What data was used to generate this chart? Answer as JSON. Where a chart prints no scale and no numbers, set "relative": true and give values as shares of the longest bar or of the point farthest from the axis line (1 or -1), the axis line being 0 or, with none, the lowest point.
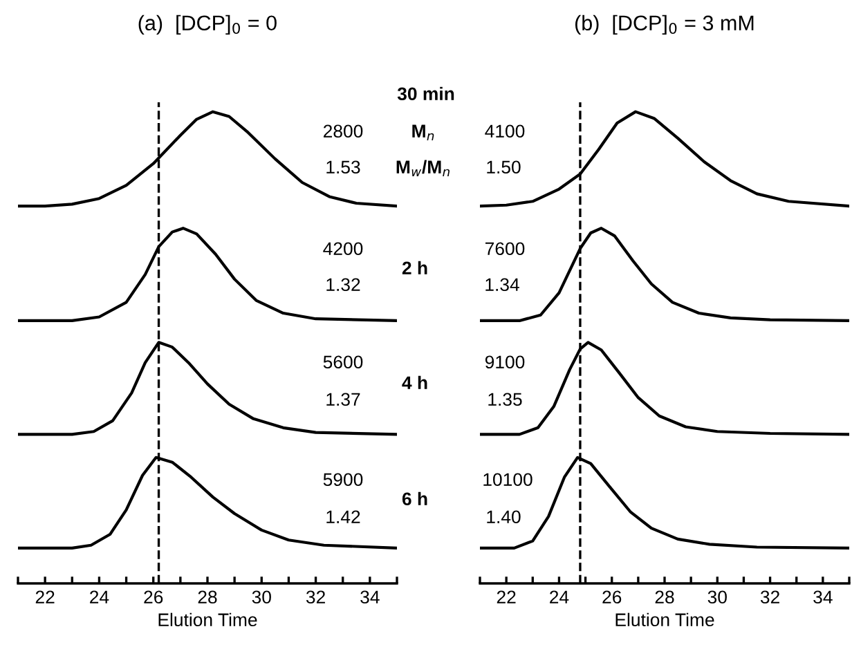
{
  "chart_data": [
    {
      "type": "line",
      "title": "(a)  [DCP]$_{0}$ = 0",
      "xlabel": "Elution Time",
      "relative": true,
      "xlim": [
        21,
        35
      ],
      "xticks": [
        {
          "value": 21,
          "label": null
        },
        22,
        {
          "value": 23,
          "label": null
        },
        24,
        {
          "value": 25,
          "label": null
        },
        26,
        {
          "value": 27,
          "label": null
        },
        28,
        {
          "value": 29,
          "label": null
        },
        30,
        {
          "value": 31,
          "label": null
        },
        32,
        {
          "value": 33,
          "label": null
        },
        34,
        {
          "value": 35,
          "label": null
        }
      ],
      "ref_lines": [
        {
          "axis": "x",
          "value": 26.2,
          "line_style": "dashed",
          "color": "#000000"
        }
      ],
      "annotations": [
        "30 min",
        "2800",
        "M$_{n}$",
        "1.53",
        "M$_{w}$/M$_{n}$",
        "4200",
        "2 h",
        "1.32",
        "5600",
        "4 h",
        "1.37",
        "5900",
        "6 h",
        "1.42"
      ],
      "series": [
        {
          "color": "#000000",
          "x": [
            21,
            22,
            23,
            24,
            25,
            26,
            27,
            27.6,
            28.2,
            28.8,
            29.5,
            30.5,
            31.5,
            32.5,
            33.5,
            35
          ],
          "values": [
            0.8,
            0.8,
            0.804,
            0.816,
            0.844,
            0.89,
            0.95,
            0.984,
            1.0,
            0.99,
            0.956,
            0.9,
            0.85,
            0.82,
            0.806,
            0.8
          ]
        },
        {
          "color": "#000000",
          "x": [
            21,
            23,
            24,
            25,
            25.7,
            26.2,
            26.7,
            27.1,
            27.6,
            28.3,
            29,
            29.8,
            30.8,
            32,
            35
          ],
          "values": [
            0.557,
            0.557,
            0.565,
            0.596,
            0.655,
            0.714,
            0.745,
            0.753,
            0.741,
            0.698,
            0.645,
            0.6,
            0.573,
            0.561,
            0.557
          ]
        },
        {
          "color": "#000000",
          "x": [
            21,
            23,
            23.8,
            24.5,
            25.2,
            25.7,
            26.2,
            26.7,
            27.3,
            28,
            28.8,
            29.7,
            30.8,
            32,
            35
          ],
          "values": [
            0.316,
            0.316,
            0.322,
            0.345,
            0.404,
            0.468,
            0.511,
            0.501,
            0.468,
            0.423,
            0.38,
            0.349,
            0.33,
            0.32,
            0.316
          ]
        },
        {
          "color": "#000000",
          "x": [
            21,
            23,
            23.7,
            24.4,
            25,
            25.6,
            26.1,
            26.7,
            27.4,
            28.2,
            29,
            30,
            31,
            32.3,
            35
          ],
          "values": [
            0.075,
            0.075,
            0.081,
            0.104,
            0.156,
            0.229,
            0.267,
            0.257,
            0.225,
            0.183,
            0.148,
            0.113,
            0.092,
            0.081,
            0.075
          ]
        }
      ]
    },
    {
      "type": "line",
      "title": "(b)  [DCP]$_{0}$ = 3 mM",
      "xlabel": "Elution Time",
      "relative": true,
      "xlim": [
        21,
        35
      ],
      "xticks": [
        {
          "value": 21,
          "label": null
        },
        22,
        {
          "value": 23,
          "label": null
        },
        24,
        {
          "value": 25,
          "label": null
        },
        26,
        {
          "value": 27,
          "label": null
        },
        28,
        {
          "value": 29,
          "label": null
        },
        30,
        {
          "value": 31,
          "label": null
        },
        32,
        {
          "value": 33,
          "label": null
        },
        34,
        {
          "value": 35,
          "label": null
        }
      ],
      "ref_lines": [
        {
          "axis": "x",
          "value": 24.8,
          "line_style": "dashed",
          "color": "#000000"
        }
      ],
      "annotations": [
        "4100",
        "1.50",
        "7600",
        "1.34",
        "9100",
        "1.35",
        "10100",
        "1.40"
      ],
      "series": [
        {
          "color": "#000000",
          "x": [
            21,
            22,
            23,
            24,
            24.8,
            25.5,
            26.2,
            26.9,
            27.6,
            28.5,
            29.5,
            30.5,
            31.5,
            32.7,
            35
          ],
          "values": [
            0.8,
            0.802,
            0.81,
            0.836,
            0.868,
            0.92,
            0.976,
            1.0,
            0.986,
            0.944,
            0.894,
            0.854,
            0.826,
            0.81,
            0.8
          ]
        },
        {
          "color": "#000000",
          "x": [
            21,
            22.5,
            23.3,
            24,
            24.8,
            25.2,
            25.6,
            26.1,
            26.8,
            27.5,
            28.3,
            29.3,
            30.5,
            32,
            35
          ],
          "values": [
            0.557,
            0.557,
            0.569,
            0.616,
            0.71,
            0.743,
            0.753,
            0.737,
            0.684,
            0.635,
            0.596,
            0.573,
            0.563,
            0.559,
            0.557
          ]
        },
        {
          "color": "#000000",
          "x": [
            21,
            22.5,
            23.2,
            23.8,
            24.4,
            24.8,
            25.1,
            25.6,
            26.3,
            27,
            27.8,
            28.8,
            30,
            32,
            35
          ],
          "values": [
            0.316,
            0.316,
            0.33,
            0.375,
            0.453,
            0.497,
            0.511,
            0.495,
            0.445,
            0.394,
            0.355,
            0.332,
            0.322,
            0.318,
            0.316
          ]
        },
        {
          "color": "#000000",
          "x": [
            21,
            22.3,
            23,
            23.6,
            24.2,
            24.7,
            25.2,
            25.9,
            26.7,
            27.5,
            28.5,
            29.7,
            31.5,
            35
          ],
          "values": [
            0.075,
            0.075,
            0.09,
            0.142,
            0.225,
            0.267,
            0.254,
            0.206,
            0.152,
            0.117,
            0.094,
            0.083,
            0.077,
            0.075
          ]
        }
      ]
    }
  ]
}
